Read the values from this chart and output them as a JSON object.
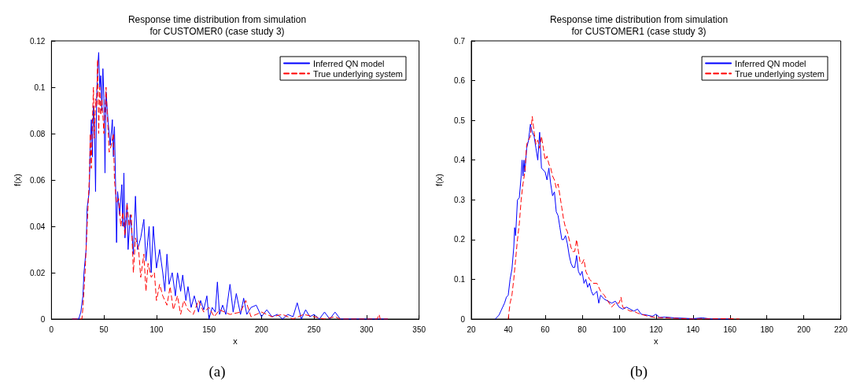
{
  "chart_data": [
    {
      "type": "line",
      "title": "Response time distribution from simulation\nfor CUSTOMER0 (case study 3)",
      "xlabel": "x",
      "ylabel": "f(x)",
      "xlim": [
        0,
        350
      ],
      "xticks": [
        0,
        50,
        100,
        150,
        200,
        250,
        300,
        350
      ],
      "ylim": [
        0,
        0.12
      ],
      "yticks": [
        0,
        0.02,
        0.04,
        0.06,
        0.08,
        0.1,
        0.12
      ],
      "legend": "top right",
      "grid": false,
      "marker": "none",
      "annotations": [
        "(a)"
      ],
      "series": [
        {
          "name": "Inferred QN model",
          "color": "#0000ff",
          "line_style": "solid",
          "x": [
            20,
            26,
            28,
            30,
            31,
            33,
            34,
            36,
            37,
            38,
            39,
            40,
            41,
            42,
            43,
            44,
            45,
            46,
            47,
            48,
            49,
            50,
            51,
            52,
            54,
            56,
            58,
            59,
            60,
            61,
            62,
            63,
            65,
            67,
            68,
            69,
            70,
            72,
            73,
            75,
            77,
            78,
            80,
            82,
            85,
            88,
            90,
            93,
            95,
            97,
            100,
            103,
            106,
            108,
            110,
            112,
            115,
            118,
            120,
            123,
            125,
            128,
            130,
            133,
            136,
            140,
            142,
            145,
            148,
            150,
            153,
            156,
            158,
            160,
            163,
            166,
            170,
            173,
            176,
            180,
            183,
            186,
            190,
            195,
            200,
            205,
            210,
            215,
            220,
            225,
            230,
            234,
            238,
            242,
            246,
            250,
            255,
            260,
            265,
            270,
            275,
            320
          ],
          "values": [
            0,
            0,
            0.003,
            0.01,
            0.02,
            0.03,
            0.048,
            0.055,
            0.076,
            0.086,
            0.07,
            0.092,
            0.085,
            0.055,
            0.095,
            0.108,
            0.115,
            0.1,
            0.105,
            0.09,
            0.108,
            0.095,
            0.063,
            0.098,
            0.085,
            0.075,
            0.086,
            0.07,
            0.083,
            0.06,
            0.033,
            0.055,
            0.045,
            0.058,
            0.04,
            0.063,
            0.035,
            0.05,
            0.03,
            0.045,
            0.035,
            0.028,
            0.053,
            0.03,
            0.035,
            0.043,
            0.025,
            0.04,
            0.02,
            0.04,
            0.022,
            0.03,
            0.02,
            0.012,
            0.028,
            0.015,
            0.02,
            0.01,
            0.02,
            0.012,
            0.019,
            0.008,
            0.014,
            0.005,
            0.01,
            0.003,
            0.008,
            0.004,
            0.01,
            0,
            0.005,
            0.003,
            0.016,
            0.002,
            0.006,
            0.002,
            0.015,
            0.003,
            0.011,
            0.002,
            0.009,
            0.002,
            0.005,
            0.006,
            0.001,
            0.004,
            0.001,
            0.002,
            0,
            0.002,
            0.001,
            0.007,
            0,
            0.004,
            0.001,
            0.002,
            0,
            0.003,
            0,
            0.003,
            0,
            0
          ]
        },
        {
          "name": "True underlying system",
          "color": "#ff0000",
          "line_style": "dashed",
          "x": [
            20,
            29,
            30,
            32,
            34,
            36,
            37,
            38,
            39,
            40,
            41,
            42,
            43,
            44,
            45,
            46,
            47,
            48,
            50,
            52,
            53,
            55,
            57,
            59,
            60,
            62,
            64,
            66,
            68,
            70,
            72,
            74,
            76,
            78,
            80,
            83,
            85,
            88,
            90,
            92,
            95,
            98,
            100,
            103,
            106,
            110,
            113,
            116,
            120,
            123,
            126,
            130,
            135,
            140,
            145,
            150,
            155,
            160,
            170,
            180,
            185,
            190,
            200,
            210,
            220,
            230,
            240,
            250,
            260,
            270,
            275,
            310,
            312,
            313,
            320
          ],
          "values": [
            0,
            0,
            0.005,
            0.02,
            0.04,
            0.06,
            0.08,
            0.065,
            0.085,
            0.1,
            0.078,
            0.095,
            0.092,
            0.112,
            0.08,
            0.1,
            0.088,
            0.095,
            0.08,
            0.1,
            0.09,
            0.072,
            0.075,
            0.08,
            0.06,
            0.05,
            0.052,
            0.04,
            0.046,
            0.036,
            0.05,
            0.04,
            0.045,
            0.02,
            0.035,
            0.03,
            0.018,
            0.028,
            0.012,
            0.024,
            0.018,
            0.02,
            0.008,
            0.015,
            0.01,
            0.006,
            0.014,
            0.004,
            0.01,
            0.002,
            0.008,
            0.004,
            0.002,
            0.008,
            0.003,
            0.005,
            0.001,
            0.004,
            0.002,
            0.003,
            0.008,
            0.001,
            0.003,
            0.001,
            0.002,
            0,
            0.002,
            0.001,
            0,
            0.001,
            0,
            0,
            0.002,
            0,
            0
          ]
        }
      ]
    },
    {
      "type": "line",
      "title": "Response time distribution from simulation\nfor CUSTOMER1 (case study 3)",
      "xlabel": "x",
      "ylabel": "f(x)",
      "xlim": [
        20,
        220
      ],
      "xticks": [
        20,
        40,
        60,
        80,
        100,
        120,
        140,
        160,
        180,
        200,
        220
      ],
      "ylim": [
        0,
        0.7
      ],
      "yticks": [
        0,
        0.1,
        0.2,
        0.3,
        0.4,
        0.5,
        0.6,
        0.7
      ],
      "legend": "top right",
      "grid": false,
      "marker": "none",
      "annotations": [
        "(b)"
      ],
      "series": [
        {
          "name": "Inferred QN model",
          "color": "#0000ff",
          "line_style": "solid",
          "x": [
            33,
            35,
            36,
            37,
            38,
            39,
            40,
            41,
            42,
            43,
            43.5,
            44,
            45,
            46,
            47,
            47.5,
            48,
            48.5,
            49,
            50,
            51,
            51.5,
            52,
            53,
            54,
            55,
            56,
            57,
            58,
            60,
            61,
            62,
            63,
            64,
            65,
            66,
            67,
            68,
            69,
            70,
            71,
            72,
            73,
            74,
            75,
            76,
            77,
            78,
            79,
            80,
            81,
            82,
            83,
            84,
            85,
            86,
            88,
            89,
            90,
            92,
            94,
            96,
            98,
            100,
            102,
            104,
            106,
            108,
            110,
            112,
            115,
            118,
            120,
            122,
            125,
            130,
            135,
            140,
            145,
            150,
            160
          ],
          "values": [
            0,
            0.01,
            0.02,
            0.03,
            0.04,
            0.055,
            0.06,
            0.1,
            0.125,
            0.18,
            0.23,
            0.21,
            0.3,
            0.305,
            0.36,
            0.4,
            0.36,
            0.4,
            0.37,
            0.43,
            0.45,
            0.47,
            0.49,
            0.47,
            0.46,
            0.43,
            0.4,
            0.47,
            0.38,
            0.37,
            0.35,
            0.38,
            0.34,
            0.31,
            0.32,
            0.27,
            0.26,
            0.23,
            0.2,
            0.2,
            0.21,
            0.19,
            0.16,
            0.14,
            0.13,
            0.13,
            0.16,
            0.12,
            0.11,
            0.12,
            0.09,
            0.1,
            0.08,
            0.09,
            0.07,
            0.06,
            0.07,
            0.04,
            0.06,
            0.05,
            0.045,
            0.04,
            0.045,
            0.03,
            0.025,
            0.03,
            0.025,
            0.02,
            0.025,
            0.012,
            0.01,
            0.007,
            0.012,
            0.004,
            0.005,
            0.003,
            0.002,
            0.001,
            0.003,
            0,
            0
          ]
        },
        {
          "name": "True underlying system",
          "color": "#ff0000",
          "line_style": "dashed",
          "x": [
            40,
            41,
            42,
            43,
            44,
            45,
            46,
            47,
            48,
            49,
            50,
            51,
            52,
            53,
            54,
            55,
            56,
            57,
            58,
            59,
            60,
            61,
            62,
            63,
            64,
            65,
            66,
            67,
            68,
            69,
            70,
            71,
            72,
            73,
            74,
            75,
            76,
            77,
            78,
            79,
            80,
            81,
            82,
            84,
            86,
            88,
            90,
            92,
            94,
            96,
            98,
            100,
            101,
            102,
            104,
            106,
            108,
            110,
            112,
            115,
            118,
            120,
            125,
            130,
            135,
            140,
            160,
            165
          ],
          "values": [
            0,
            0.04,
            0.06,
            0.1,
            0.15,
            0.2,
            0.24,
            0.3,
            0.34,
            0.37,
            0.44,
            0.45,
            0.46,
            0.51,
            0.47,
            0.44,
            0.45,
            0.43,
            0.46,
            0.43,
            0.4,
            0.41,
            0.39,
            0.38,
            0.36,
            0.35,
            0.33,
            0.34,
            0.31,
            0.28,
            0.25,
            0.23,
            0.22,
            0.2,
            0.18,
            0.17,
            0.17,
            0.2,
            0.17,
            0.14,
            0.14,
            0.15,
            0.12,
            0.1,
            0.09,
            0.09,
            0.07,
            0.06,
            0.045,
            0.03,
            0.04,
            0.04,
            0.055,
            0.03,
            0.025,
            0.02,
            0.02,
            0.015,
            0.012,
            0.008,
            0.005,
            0.004,
            0.003,
            0.002,
            0.001,
            0,
            0.001,
            0
          ]
        }
      ]
    }
  ]
}
